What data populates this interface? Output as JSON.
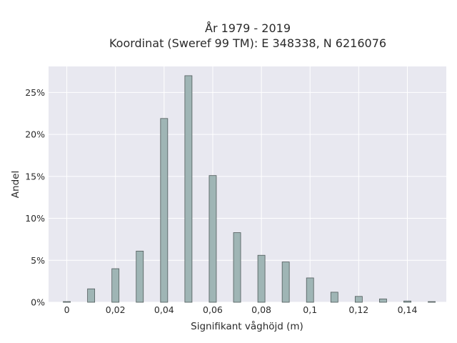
{
  "chart_data": {
    "type": "bar",
    "title": "År 1979 - 2019",
    "subtitle": "Koordinat (Sweref 99 TM): E 348338, N 6216076",
    "xlabel": "Signifikant våghöjd (m)",
    "ylabel": "Andel",
    "x": [
      0,
      0.01,
      0.02,
      0.03,
      0.04,
      0.05,
      0.06,
      0.07,
      0.08,
      0.09,
      0.1,
      0.11,
      0.12,
      0.13,
      0.14,
      0.15
    ],
    "values": [
      0.08,
      1.6,
      4.0,
      6.1,
      21.9,
      27.0,
      15.1,
      8.3,
      5.6,
      4.8,
      2.9,
      1.2,
      0.7,
      0.4,
      0.15,
      0.08
    ],
    "xlim": [
      -0.0075,
      0.156
    ],
    "ylim": [
      0,
      28.1
    ],
    "x_ticks": [
      {
        "value": 0,
        "label": "0"
      },
      {
        "value": 0.02,
        "label": "0,02"
      },
      {
        "value": 0.04,
        "label": "0,04"
      },
      {
        "value": 0.06,
        "label": "0,06"
      },
      {
        "value": 0.08,
        "label": "0,08"
      },
      {
        "value": 0.1,
        "label": "0,1"
      },
      {
        "value": 0.12,
        "label": "0,12"
      },
      {
        "value": 0.14,
        "label": "0,14"
      }
    ],
    "y_ticks": [
      {
        "value": 0,
        "label": "0%"
      },
      {
        "value": 5,
        "label": "5%"
      },
      {
        "value": 10,
        "label": "10%"
      },
      {
        "value": 15,
        "label": "15%"
      },
      {
        "value": 20,
        "label": "20%"
      },
      {
        "value": 25,
        "label": "25%"
      }
    ],
    "grid": true,
    "bar_color": "#9fb5b5",
    "bar_edge_color": "#4f5a5a",
    "plot_background": "#e8e8f0"
  }
}
